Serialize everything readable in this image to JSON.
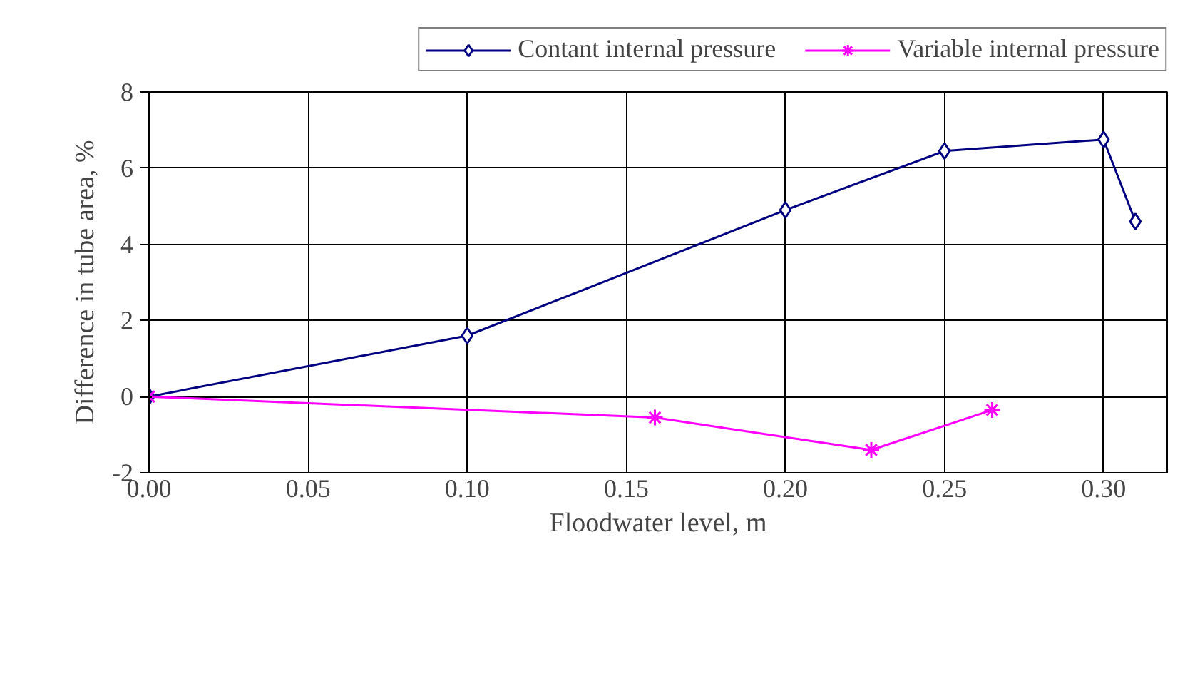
{
  "chart_data": {
    "type": "line",
    "xlabel": "Floodwater level, m",
    "ylabel": "Difference in tube area, %",
    "xlim": [
      0,
      0.32
    ],
    "ylim": [
      -2,
      8
    ],
    "xticks": [
      {
        "value": 0,
        "label": "0.00"
      },
      {
        "value": 0.05,
        "label": "0.05"
      },
      {
        "value": 0.1,
        "label": "0.10"
      },
      {
        "value": 0.15,
        "label": "0.15"
      },
      {
        "value": 0.2,
        "label": "0.20"
      },
      {
        "value": 0.25,
        "label": "0.25"
      },
      {
        "value": 0.3,
        "label": "0.30"
      }
    ],
    "yticks": [
      -2,
      0,
      2,
      4,
      6,
      8
    ],
    "grid": true,
    "legend": "top",
    "series": [
      {
        "name": "Contant internal pressure",
        "color": "#000080",
        "marker": "diamond",
        "x": [
          0,
          0.1,
          0.2,
          0.25,
          0.3,
          0.31
        ],
        "values": [
          0,
          1.6,
          4.9,
          6.45,
          6.75,
          4.6
        ]
      },
      {
        "name": "Variable internal pressure",
        "color": "#ff00ff",
        "marker": "cross",
        "x": [
          0,
          0.159,
          0.227,
          0.265
        ],
        "values": [
          0,
          -0.55,
          -1.4,
          -0.35
        ]
      }
    ]
  }
}
